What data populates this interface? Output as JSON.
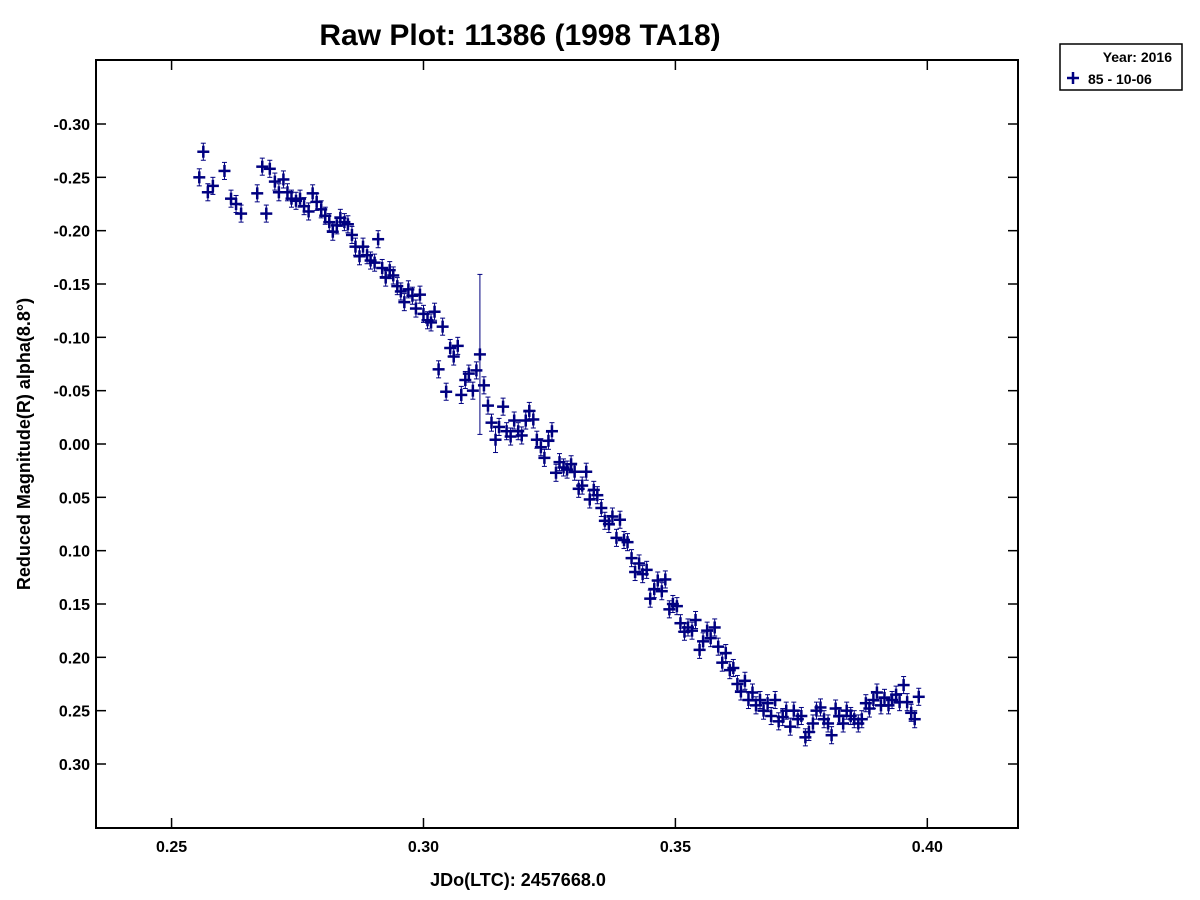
{
  "chart_data": {
    "type": "scatter",
    "title": "Raw Plot: 11386 (1998 TA18)",
    "xlabel": "JDo(LTC): 2457668.0",
    "ylabel": "Reduced Magnitude(R) alpha(8.8°)",
    "xlim": [
      0.235,
      0.418
    ],
    "ylim": [
      0.36,
      -0.36
    ],
    "y_inverted": true,
    "grid": false,
    "x_ticks": [
      0.25,
      0.3,
      0.35,
      0.4
    ],
    "x_tick_labels": [
      "0.25",
      "0.30",
      "0.35",
      "0.40"
    ],
    "y_ticks": [
      -0.3,
      -0.25,
      -0.2,
      -0.15,
      -0.1,
      -0.05,
      0.0,
      0.05,
      0.1,
      0.15,
      0.2,
      0.25,
      0.3
    ],
    "y_tick_labels": [
      "-0.30",
      "-0.25",
      "-0.20",
      "-0.15",
      "-0.10",
      "-0.05",
      "0.00",
      "0.05",
      "0.10",
      "0.15",
      "0.20",
      "0.25",
      "0.30"
    ],
    "legend": {
      "placement": "outside-top-right",
      "header": "Year: 2016",
      "entries": [
        {
          "label": "85 - 10-06",
          "marker": "plus",
          "color": "#000080"
        }
      ]
    },
    "series": [
      {
        "name": "85 - 10-06",
        "color": "#000080",
        "marker": "plus",
        "points": [
          [
            0.2555,
            -0.25,
            0.008
          ],
          [
            0.2563,
            -0.274,
            0.008
          ],
          [
            0.2572,
            -0.236,
            0.008
          ],
          [
            0.2582,
            -0.242,
            0.008
          ],
          [
            0.2605,
            -0.256,
            0.008
          ],
          [
            0.2618,
            -0.23,
            0.008
          ],
          [
            0.2628,
            -0.225,
            0.008
          ],
          [
            0.2638,
            -0.216,
            0.008
          ],
          [
            0.267,
            -0.235,
            0.008
          ],
          [
            0.268,
            -0.26,
            0.008
          ],
          [
            0.2688,
            -0.216,
            0.008
          ],
          [
            0.2695,
            -0.258,
            0.008
          ],
          [
            0.2705,
            -0.246,
            0.008
          ],
          [
            0.2713,
            -0.236,
            0.008
          ],
          [
            0.2722,
            -0.248,
            0.008
          ],
          [
            0.273,
            -0.236,
            0.008
          ],
          [
            0.2738,
            -0.23,
            0.008
          ],
          [
            0.2747,
            -0.228,
            0.008
          ],
          [
            0.2755,
            -0.23,
            0.008
          ],
          [
            0.2763,
            -0.223,
            0.008
          ],
          [
            0.2772,
            -0.218,
            0.008
          ],
          [
            0.278,
            -0.235,
            0.008
          ],
          [
            0.2788,
            -0.227,
            0.008
          ],
          [
            0.2797,
            -0.22,
            0.008
          ],
          [
            0.2805,
            -0.214,
            0.008
          ],
          [
            0.2813,
            -0.208,
            0.008
          ],
          [
            0.282,
            -0.199,
            0.008
          ],
          [
            0.2828,
            -0.205,
            0.008
          ],
          [
            0.2835,
            -0.212,
            0.008
          ],
          [
            0.2843,
            -0.208,
            0.008
          ],
          [
            0.285,
            -0.206,
            0.008
          ],
          [
            0.2858,
            -0.196,
            0.008
          ],
          [
            0.2865,
            -0.185,
            0.008
          ],
          [
            0.2873,
            -0.176,
            0.008
          ],
          [
            0.288,
            -0.185,
            0.008
          ],
          [
            0.2888,
            -0.177,
            0.008
          ],
          [
            0.2895,
            -0.172,
            0.008
          ],
          [
            0.2903,
            -0.17,
            0.008
          ],
          [
            0.291,
            -0.192,
            0.008
          ],
          [
            0.2918,
            -0.165,
            0.008
          ],
          [
            0.2925,
            -0.156,
            0.008
          ],
          [
            0.2933,
            -0.163,
            0.008
          ],
          [
            0.294,
            -0.158,
            0.008
          ],
          [
            0.2948,
            -0.148,
            0.008
          ],
          [
            0.2955,
            -0.143,
            0.008
          ],
          [
            0.2962,
            -0.133,
            0.008
          ],
          [
            0.297,
            -0.145,
            0.008
          ],
          [
            0.2978,
            -0.139,
            0.008
          ],
          [
            0.2985,
            -0.127,
            0.008
          ],
          [
            0.2993,
            -0.14,
            0.008
          ],
          [
            0.3,
            -0.122,
            0.008
          ],
          [
            0.3008,
            -0.116,
            0.008
          ],
          [
            0.3015,
            -0.114,
            0.008
          ],
          [
            0.3022,
            -0.124,
            0.008
          ],
          [
            0.303,
            -0.07,
            0.008
          ],
          [
            0.3038,
            -0.11,
            0.008
          ],
          [
            0.3045,
            -0.049,
            0.008
          ],
          [
            0.3053,
            -0.09,
            0.008
          ],
          [
            0.306,
            -0.082,
            0.008
          ],
          [
            0.3068,
            -0.092,
            0.008
          ],
          [
            0.3075,
            -0.046,
            0.008
          ],
          [
            0.3083,
            -0.06,
            0.008
          ],
          [
            0.309,
            -0.066,
            0.008
          ],
          [
            0.3098,
            -0.05,
            0.008
          ],
          [
            0.3105,
            -0.069,
            0.008
          ],
          [
            0.3112,
            -0.084,
            0.075
          ],
          [
            0.312,
            -0.055,
            0.008
          ],
          [
            0.3128,
            -0.036,
            0.008
          ],
          [
            0.3135,
            -0.02,
            0.008
          ],
          [
            0.3143,
            -0.004,
            0.012
          ],
          [
            0.315,
            -0.016,
            0.008
          ],
          [
            0.3158,
            -0.035,
            0.008
          ],
          [
            0.3165,
            -0.012,
            0.008
          ],
          [
            0.3173,
            -0.007,
            0.008
          ],
          [
            0.318,
            -0.022,
            0.008
          ],
          [
            0.3188,
            -0.012,
            0.008
          ],
          [
            0.3195,
            -0.008,
            0.008
          ],
          [
            0.3203,
            -0.022,
            0.008
          ],
          [
            0.321,
            -0.031,
            0.008
          ],
          [
            0.3218,
            -0.023,
            0.008
          ],
          [
            0.3225,
            -0.004,
            0.008
          ],
          [
            0.3233,
            0.003,
            0.008
          ],
          [
            0.324,
            0.013,
            0.008
          ],
          [
            0.3248,
            -0.003,
            0.008
          ],
          [
            0.3255,
            -0.012,
            0.008
          ],
          [
            0.3263,
            0.027,
            0.008
          ],
          [
            0.327,
            0.017,
            0.008
          ],
          [
            0.3278,
            0.022,
            0.008
          ],
          [
            0.3285,
            0.024,
            0.008
          ],
          [
            0.3293,
            0.019,
            0.008
          ],
          [
            0.33,
            0.026,
            0.008
          ],
          [
            0.3308,
            0.042,
            0.008
          ],
          [
            0.3315,
            0.039,
            0.008
          ],
          [
            0.3323,
            0.026,
            0.008
          ],
          [
            0.333,
            0.052,
            0.008
          ],
          [
            0.3338,
            0.043,
            0.008
          ],
          [
            0.3345,
            0.048,
            0.008
          ],
          [
            0.3353,
            0.06,
            0.008
          ],
          [
            0.336,
            0.072,
            0.008
          ],
          [
            0.3368,
            0.075,
            0.008
          ],
          [
            0.3375,
            0.068,
            0.008
          ],
          [
            0.3383,
            0.088,
            0.008
          ],
          [
            0.339,
            0.071,
            0.008
          ],
          [
            0.3398,
            0.09,
            0.008
          ],
          [
            0.3405,
            0.092,
            0.008
          ],
          [
            0.3413,
            0.107,
            0.008
          ],
          [
            0.342,
            0.12,
            0.008
          ],
          [
            0.3428,
            0.112,
            0.008
          ],
          [
            0.3435,
            0.122,
            0.008
          ],
          [
            0.3443,
            0.118,
            0.008
          ],
          [
            0.345,
            0.145,
            0.008
          ],
          [
            0.3458,
            0.136,
            0.008
          ],
          [
            0.3465,
            0.128,
            0.008
          ],
          [
            0.3473,
            0.138,
            0.008
          ],
          [
            0.348,
            0.127,
            0.008
          ],
          [
            0.3488,
            0.155,
            0.008
          ],
          [
            0.3495,
            0.15,
            0.008
          ],
          [
            0.3503,
            0.152,
            0.008
          ],
          [
            0.351,
            0.168,
            0.008
          ],
          [
            0.3518,
            0.176,
            0.008
          ],
          [
            0.3525,
            0.172,
            0.008
          ],
          [
            0.3533,
            0.175,
            0.008
          ],
          [
            0.354,
            0.165,
            0.008
          ],
          [
            0.3548,
            0.193,
            0.008
          ],
          [
            0.3555,
            0.185,
            0.008
          ],
          [
            0.3563,
            0.175,
            0.008
          ],
          [
            0.357,
            0.182,
            0.008
          ],
          [
            0.3578,
            0.172,
            0.008
          ],
          [
            0.3585,
            0.19,
            0.008
          ],
          [
            0.3593,
            0.205,
            0.008
          ],
          [
            0.36,
            0.196,
            0.008
          ],
          [
            0.3608,
            0.212,
            0.008
          ],
          [
            0.3615,
            0.21,
            0.008
          ],
          [
            0.3623,
            0.225,
            0.008
          ],
          [
            0.363,
            0.232,
            0.008
          ],
          [
            0.3638,
            0.222,
            0.008
          ],
          [
            0.3645,
            0.24,
            0.008
          ],
          [
            0.3653,
            0.233,
            0.008
          ],
          [
            0.366,
            0.245,
            0.008
          ],
          [
            0.3668,
            0.24,
            0.008
          ],
          [
            0.3675,
            0.25,
            0.008
          ],
          [
            0.3683,
            0.243,
            0.008
          ],
          [
            0.369,
            0.255,
            0.008
          ],
          [
            0.3698,
            0.24,
            0.008
          ],
          [
            0.3705,
            0.26,
            0.008
          ],
          [
            0.3713,
            0.256,
            0.008
          ],
          [
            0.372,
            0.25,
            0.008
          ],
          [
            0.3728,
            0.265,
            0.008
          ],
          [
            0.3735,
            0.25,
            0.008
          ],
          [
            0.3743,
            0.258,
            0.008
          ],
          [
            0.375,
            0.255,
            0.008
          ],
          [
            0.3758,
            0.275,
            0.008
          ],
          [
            0.3765,
            0.27,
            0.008
          ],
          [
            0.3773,
            0.262,
            0.008
          ],
          [
            0.378,
            0.25,
            0.008
          ],
          [
            0.3788,
            0.247,
            0.008
          ],
          [
            0.3795,
            0.258,
            0.008
          ],
          [
            0.3803,
            0.262,
            0.008
          ],
          [
            0.381,
            0.273,
            0.008
          ],
          [
            0.3818,
            0.248,
            0.008
          ],
          [
            0.3825,
            0.255,
            0.008
          ],
          [
            0.3833,
            0.262,
            0.008
          ],
          [
            0.384,
            0.25,
            0.008
          ],
          [
            0.3848,
            0.255,
            0.008
          ],
          [
            0.3855,
            0.258,
            0.008
          ],
          [
            0.3863,
            0.262,
            0.008
          ],
          [
            0.387,
            0.258,
            0.008
          ],
          [
            0.3878,
            0.243,
            0.008
          ],
          [
            0.3885,
            0.248,
            0.008
          ],
          [
            0.3893,
            0.24,
            0.008
          ],
          [
            0.39,
            0.233,
            0.008
          ],
          [
            0.3908,
            0.245,
            0.008
          ],
          [
            0.3915,
            0.238,
            0.008
          ],
          [
            0.3923,
            0.245,
            0.008
          ],
          [
            0.393,
            0.24,
            0.008
          ],
          [
            0.3938,
            0.235,
            0.008
          ],
          [
            0.3945,
            0.242,
            0.008
          ],
          [
            0.3953,
            0.226,
            0.008
          ],
          [
            0.396,
            0.242,
            0.008
          ],
          [
            0.3968,
            0.252,
            0.008
          ],
          [
            0.3975,
            0.258,
            0.008
          ],
          [
            0.3983,
            0.237,
            0.008
          ]
        ]
      }
    ]
  }
}
